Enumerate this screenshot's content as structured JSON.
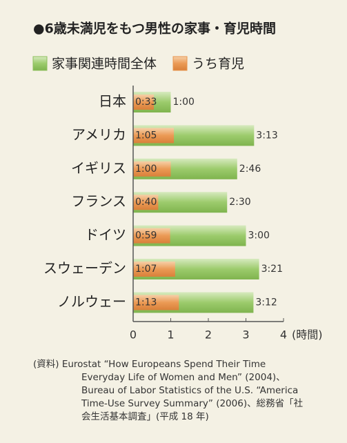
{
  "chart_data": {
    "type": "bar",
    "orientation": "horizontal",
    "overlap": true,
    "title": "●6歳未満児をもつ男性の家事・育児時間",
    "categories": [
      "日本",
      "アメリカ",
      "イギリス",
      "フランス",
      "ドイツ",
      "スウェーデン",
      "ノルウェー"
    ],
    "series": [
      {
        "name": "家事関連時間全体",
        "color": "#8dbf5c",
        "values": [
          1.0,
          3.2167,
          2.7667,
          2.5,
          3.0,
          3.35,
          3.2
        ],
        "value_labels": [
          "1:00",
          "3:13",
          "2:46",
          "2:30",
          "3:00",
          "3:21",
          "3:12"
        ]
      },
      {
        "name": "うち育児",
        "color": "#e8944d",
        "values": [
          0.55,
          1.0833,
          1.0,
          0.6667,
          0.9833,
          1.1167,
          1.2167
        ],
        "value_labels": [
          "0:33",
          "1:05",
          "1:00",
          "0:40",
          "0:59",
          "1:07",
          "1:13"
        ]
      }
    ],
    "xlim": [
      0,
      4
    ],
    "xticks": [
      0,
      1,
      2,
      3,
      4
    ],
    "xlabel": "(時間)",
    "note": [
      "(資料) Eurostat “How Europeans Spend Their Time",
      "Everyday Life of Women and Men” (2004)、",
      "Bureau of Labor Statistics of the U.S. “America",
      "Time-Use Survey Summary” (2006)、総務省「社",
      "会生活基本調査」(平成 18 年)"
    ]
  }
}
